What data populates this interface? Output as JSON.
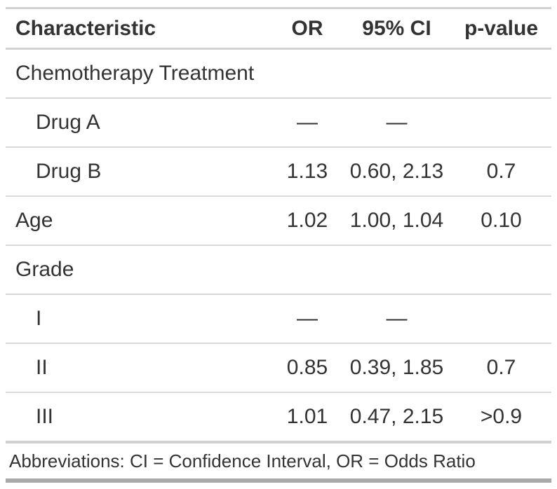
{
  "table": {
    "header": {
      "characteristic": "Characteristic",
      "or": "OR",
      "ci": "95% CI",
      "p_value": "p-value"
    },
    "rows": [
      {
        "label": "Chemotherapy Treatment",
        "indent": false,
        "or": "",
        "ci": "",
        "p": ""
      },
      {
        "label": "Drug A",
        "indent": true,
        "or": "—",
        "ci": "—",
        "p": ""
      },
      {
        "label": "Drug B",
        "indent": true,
        "or": "1.13",
        "ci": "0.60, 2.13",
        "p": "0.7"
      },
      {
        "label": "Age",
        "indent": false,
        "or": "1.02",
        "ci": "1.00, 1.04",
        "p": "0.10"
      },
      {
        "label": "Grade",
        "indent": false,
        "or": "",
        "ci": "",
        "p": ""
      },
      {
        "label": "I",
        "indent": true,
        "or": "—",
        "ci": "—",
        "p": ""
      },
      {
        "label": "II",
        "indent": true,
        "or": "0.85",
        "ci": "0.39, 1.85",
        "p": "0.7"
      },
      {
        "label": "III",
        "indent": true,
        "or": "1.01",
        "ci": "0.47, 2.15",
        "p": ">0.9"
      }
    ],
    "source_note": "Abbreviations: CI = Confidence Interval, OR = Odds Ratio"
  },
  "colors": {
    "text": "#333333",
    "border_light": "#d2d2d2",
    "row_divider": "#d9d9d9",
    "body_bottom_border": "#cfcfcf",
    "table_bottom_border": "#a9a9a9",
    "background": "#ffffff"
  },
  "chart_data": {
    "type": "table",
    "title": "",
    "columns": [
      "Characteristic",
      "OR",
      "95% CI",
      "p-value"
    ],
    "rows": [
      [
        "Chemotherapy Treatment",
        "",
        "",
        ""
      ],
      [
        "Drug A",
        "—",
        "—",
        ""
      ],
      [
        "Drug B",
        "1.13",
        "0.60, 2.13",
        "0.7"
      ],
      [
        "Age",
        "1.02",
        "1.00, 1.04",
        "0.10"
      ],
      [
        "Grade",
        "",
        "",
        ""
      ],
      [
        "I",
        "—",
        "—",
        ""
      ],
      [
        "II",
        "0.85",
        "0.39, 1.85",
        "0.7"
      ],
      [
        "III",
        "1.01",
        "0.47, 2.15",
        ">0.9"
      ]
    ],
    "footnote": "Abbreviations: CI = Confidence Interval, OR = Odds Ratio",
    "layout_hints": {
      "first_column_align": "left",
      "value_columns_align": "center",
      "indented_rows": [
        1,
        2,
        5,
        6,
        7
      ]
    }
  }
}
